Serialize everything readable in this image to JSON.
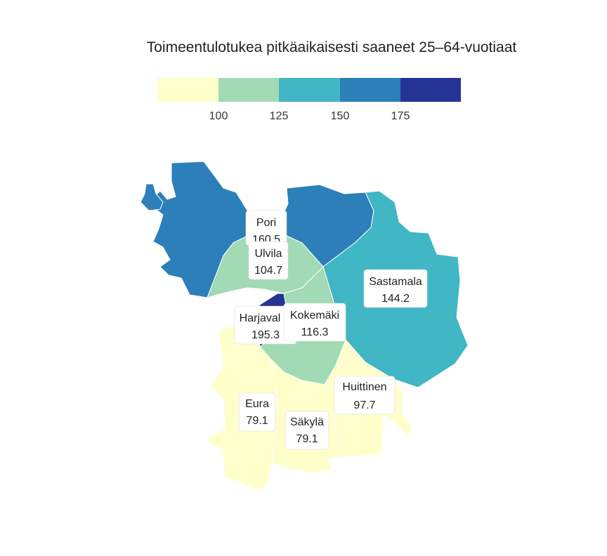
{
  "title": "Toimeentulotukea pitkäaikaisesti saaneet 25–64-vuotiaat",
  "legend": {
    "bins": [
      {
        "color": "#ffffcc"
      },
      {
        "color": "#a1dab4"
      },
      {
        "color": "#41b6c4"
      },
      {
        "color": "#2c7fb8"
      },
      {
        "color": "#253494"
      }
    ],
    "ticks": [
      "100",
      "125",
      "150",
      "175"
    ]
  },
  "regions": [
    {
      "name": "Pori",
      "value": "160.5",
      "color": "#2c7fb8"
    },
    {
      "name": "Ulvila",
      "value": "104.7",
      "color": "#a1dab4"
    },
    {
      "name": "Sastamala",
      "value": "144.2",
      "color": "#41b6c4"
    },
    {
      "name": "Harjavalta",
      "label": "Harjaval",
      "value": "195.3",
      "color": "#253494"
    },
    {
      "name": "Kokemäki",
      "value": "116.3",
      "color": "#a1dab4"
    },
    {
      "name": "Huittinen",
      "value": "97.7",
      "color": "#ffffcc"
    },
    {
      "name": "Eura",
      "value": "79.1",
      "color": "#ffffcc"
    },
    {
      "name": "Säkylä",
      "value": "79.1",
      "color": "#ffffcc"
    }
  ]
}
